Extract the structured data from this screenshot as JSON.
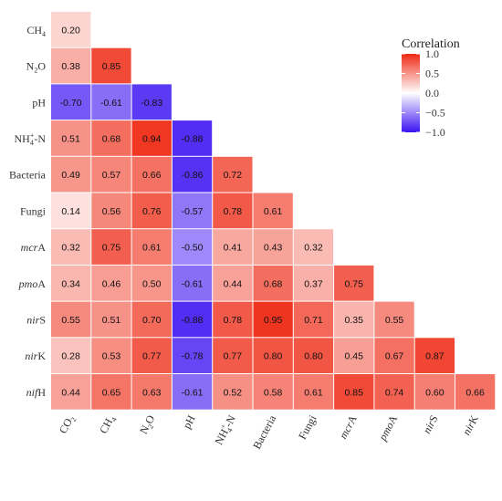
{
  "chart_data": {
    "type": "heatmap",
    "subtype": "lower-triangle-correlation-matrix",
    "row_labels": [
      [
        {
          "t": "CH"
        },
        {
          "t": "4",
          "sub": true
        }
      ],
      [
        {
          "t": "N"
        },
        {
          "t": "2",
          "sub": true
        },
        {
          "t": "O"
        }
      ],
      [
        {
          "t": "pH"
        }
      ],
      [
        {
          "t": "NH"
        },
        {
          "t": "4",
          "sub": true
        },
        {
          "t": "+",
          "sup": true
        },
        {
          "t": "-N"
        }
      ],
      [
        {
          "t": "Bacteria"
        }
      ],
      [
        {
          "t": "Fungi"
        }
      ],
      [
        {
          "t": "mcr",
          "i": true
        },
        {
          "t": "A"
        }
      ],
      [
        {
          "t": "pmo",
          "i": true
        },
        {
          "t": "A"
        }
      ],
      [
        {
          "t": "nir",
          "i": true
        },
        {
          "t": "S"
        }
      ],
      [
        {
          "t": "nir",
          "i": true
        },
        {
          "t": "K"
        }
      ],
      [
        {
          "t": "nif",
          "i": true
        },
        {
          "t": "H"
        }
      ]
    ],
    "col_labels": [
      [
        {
          "t": "CO"
        },
        {
          "t": "2",
          "sub": true
        }
      ],
      [
        {
          "t": "CH"
        },
        {
          "t": "4",
          "sub": true
        }
      ],
      [
        {
          "t": "N"
        },
        {
          "t": "2",
          "sub": true
        },
        {
          "t": "O"
        }
      ],
      [
        {
          "t": "pH"
        }
      ],
      [
        {
          "t": "NH"
        },
        {
          "t": "4",
          "sub": true
        },
        {
          "t": "+",
          "sup": true
        },
        {
          "t": "-N"
        }
      ],
      [
        {
          "t": "Bacteria"
        }
      ],
      [
        {
          "t": "Fungi"
        }
      ],
      [
        {
          "t": "mcr",
          "i": true
        },
        {
          "t": "A"
        }
      ],
      [
        {
          "t": "pmo",
          "i": true
        },
        {
          "t": "A"
        }
      ],
      [
        {
          "t": "nir",
          "i": true
        },
        {
          "t": "S"
        }
      ],
      [
        {
          "t": "nir",
          "i": true
        },
        {
          "t": "K"
        }
      ]
    ],
    "values": [
      [
        0.2
      ],
      [
        0.38,
        0.85
      ],
      [
        -0.7,
        -0.61,
        -0.83
      ],
      [
        0.51,
        0.68,
        0.94,
        -0.88
      ],
      [
        0.49,
        0.57,
        0.66,
        -0.86,
        0.72
      ],
      [
        0.14,
        0.56,
        0.76,
        -0.57,
        0.78,
        0.61
      ],
      [
        0.32,
        0.75,
        0.61,
        -0.5,
        0.41,
        0.43,
        0.32
      ],
      [
        0.34,
        0.46,
        0.5,
        -0.61,
        0.44,
        0.68,
        0.37,
        0.75
      ],
      [
        0.55,
        0.51,
        0.7,
        -0.88,
        0.78,
        0.95,
        0.71,
        0.35,
        0.55
      ],
      [
        0.28,
        0.53,
        0.77,
        -0.78,
        0.77,
        0.8,
        0.8,
        0.45,
        0.67,
        0.87
      ],
      [
        0.44,
        0.65,
        0.63,
        -0.61,
        0.52,
        0.58,
        0.61,
        0.85,
        0.74,
        0.6,
        0.66
      ]
    ],
    "legend": {
      "title": "Correlation",
      "ticks": [
        1.0,
        0.5,
        0.0,
        -0.5,
        -1.0
      ],
      "tick_labels": [
        "1.0",
        "0.5",
        "0.0",
        "−0.5",
        "−1.0"
      ],
      "range": [
        -1.0,
        1.0
      ],
      "placement": "top-right"
    },
    "colors": {
      "high": "#ee2a14",
      "mid": "#ffffff",
      "low": "#3a12f2"
    }
  }
}
